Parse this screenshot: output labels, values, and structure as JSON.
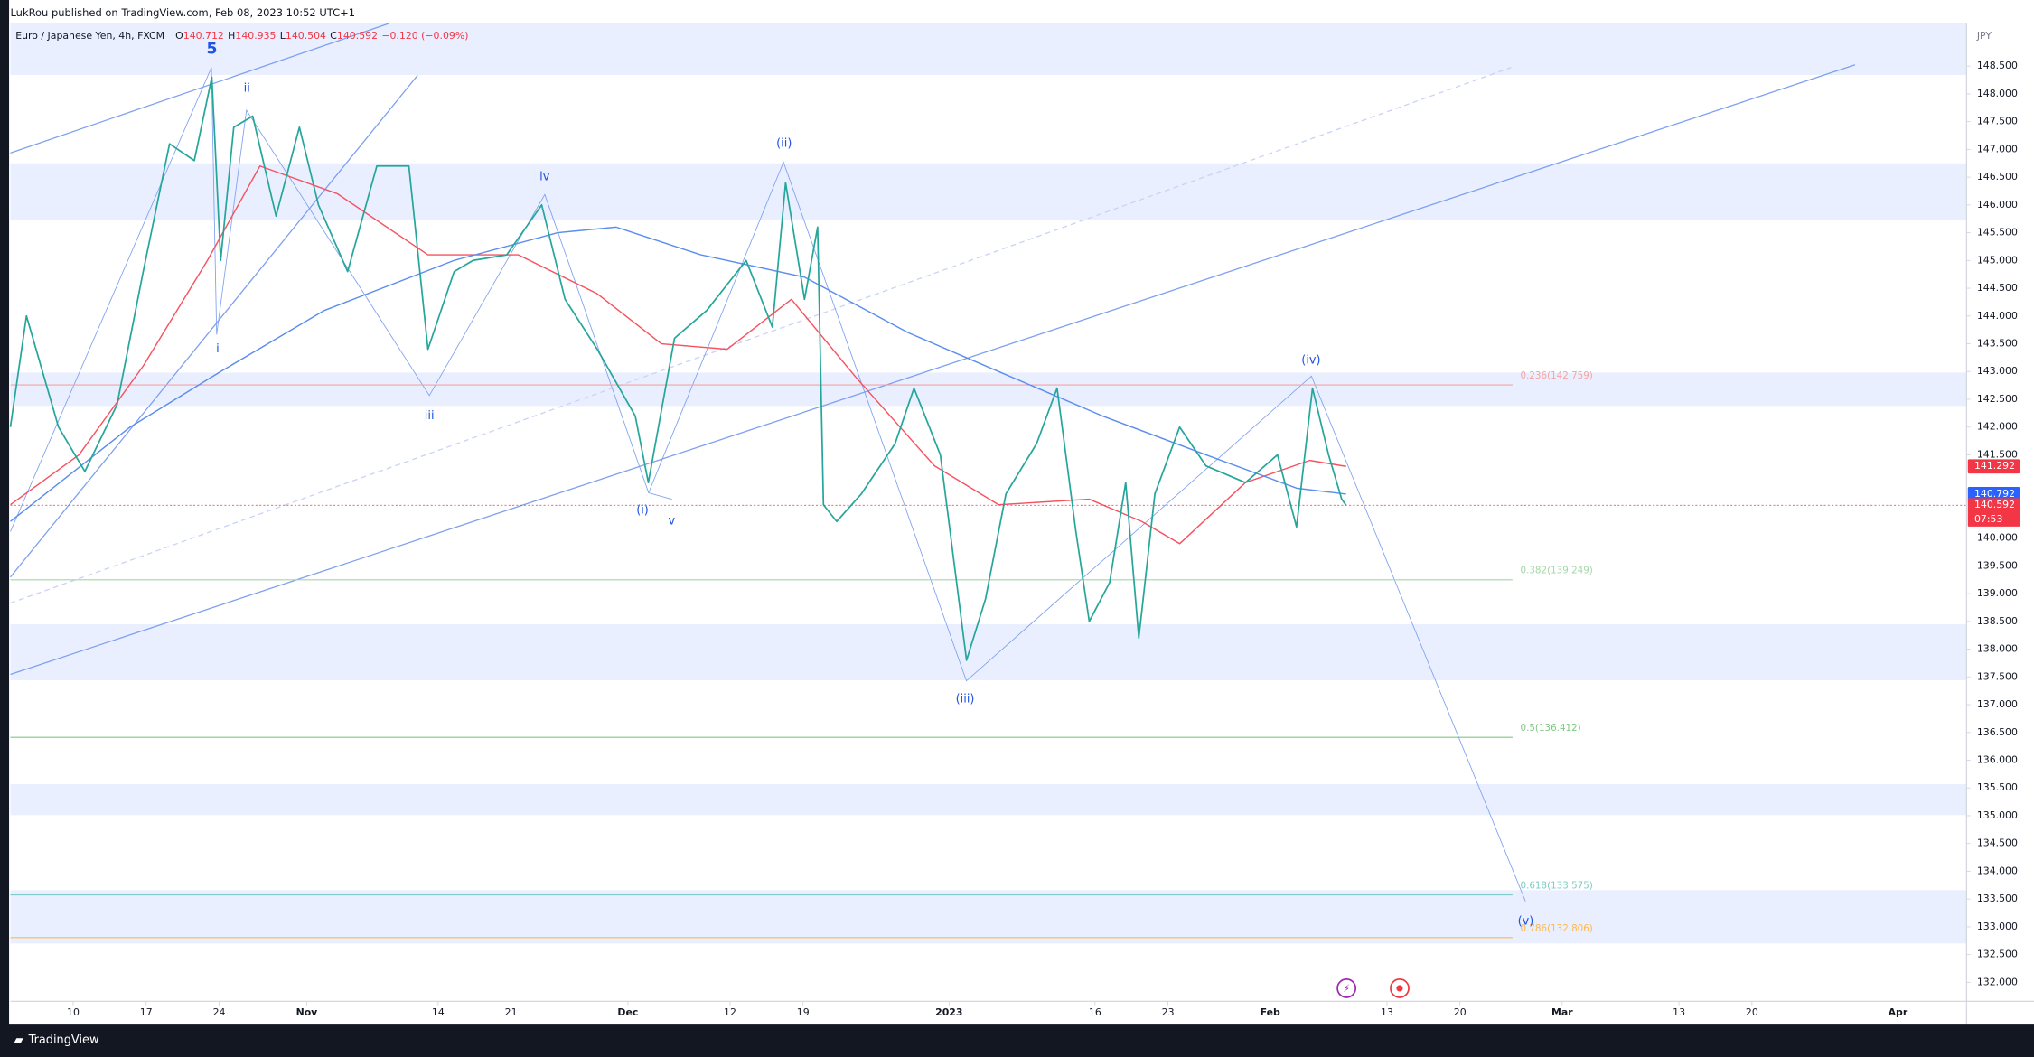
{
  "header": {
    "publisher": "LukRou published on TradingView.com, Feb 08, 2023 10:52 UTC+1",
    "brand": "TradingView"
  },
  "chart_data": {
    "type": "line",
    "title": "Euro / Japanese Yen, 4h, FXCM",
    "ohlc": [
      {
        "label": "O",
        "value": 140.712
      },
      {
        "label": "H",
        "value": 140.935
      },
      {
        "label": "L",
        "value": 140.504
      },
      {
        "label": "C",
        "value": 140.592
      }
    ],
    "change": "−0.120 (−0.09%)",
    "currency": "JPY",
    "xlim": [
      -4.3,
      129.7
    ],
    "ylim": [
      131.66,
      149.27
    ],
    "xticks": [
      {
        "value": 0,
        "label": "10"
      },
      {
        "value": 5,
        "label": "17"
      },
      {
        "value": 10,
        "label": "24"
      },
      {
        "value": 16,
        "label": "Nov"
      },
      {
        "value": 25,
        "label": "14"
      },
      {
        "value": 30,
        "label": "21"
      },
      {
        "value": 38,
        "label": "Dec"
      },
      {
        "value": 45,
        "label": "12"
      },
      {
        "value": 50,
        "label": "19"
      },
      {
        "value": 60,
        "label": "2023"
      },
      {
        "value": 70,
        "label": "16"
      },
      {
        "value": 75,
        "label": "23"
      },
      {
        "value": 82,
        "label": "Feb"
      },
      {
        "value": 90,
        "label": "13"
      },
      {
        "value": 95,
        "label": "20"
      },
      {
        "value": 102,
        "label": "Mar"
      },
      {
        "value": 110,
        "label": "13"
      },
      {
        "value": 115,
        "label": "20"
      },
      {
        "value": 125,
        "label": "Apr"
      }
    ],
    "yticks": [
      {
        "value": 132,
        "label": "132.000"
      },
      {
        "value": 132.5,
        "label": "132.500"
      },
      {
        "value": 133,
        "label": "133.000"
      },
      {
        "value": 133.5,
        "label": "133.500"
      },
      {
        "value": 134,
        "label": "134.000"
      },
      {
        "value": 134.5,
        "label": "134.500"
      },
      {
        "value": 135,
        "label": "135.000"
      },
      {
        "value": 135.5,
        "label": "135.500"
      },
      {
        "value": 136,
        "label": "136.000"
      },
      {
        "value": 136.5,
        "label": "136.500"
      },
      {
        "value": 137,
        "label": "137.000"
      },
      {
        "value": 137.5,
        "label": "137.500"
      },
      {
        "value": 138,
        "label": "138.000"
      },
      {
        "value": 138.5,
        "label": "138.500"
      },
      {
        "value": 139,
        "label": "139.000"
      },
      {
        "value": 139.5,
        "label": "139.500"
      },
      {
        "value": 140,
        "label": "140.000"
      },
      {
        "value": 141.5,
        "label": "141.500"
      },
      {
        "value": 142,
        "label": "142.000"
      },
      {
        "value": 142.5,
        "label": "142.500"
      },
      {
        "value": 143,
        "label": "143.000"
      },
      {
        "value": 143.5,
        "label": "143.500"
      },
      {
        "value": 144,
        "label": "144.000"
      },
      {
        "value": 144.5,
        "label": "144.500"
      },
      {
        "value": 145,
        "label": "145.000"
      },
      {
        "value": 145.5,
        "label": "145.500"
      },
      {
        "value": 146,
        "label": "146.000"
      },
      {
        "value": 146.5,
        "label": "146.500"
      },
      {
        "value": 147,
        "label": "147.000"
      },
      {
        "value": 147.5,
        "label": "147.500"
      },
      {
        "value": 148,
        "label": "148.000"
      },
      {
        "value": 148.5,
        "label": "148.500"
      }
    ],
    "price": {
      "color": "#26a69a",
      "x": [
        -4.3,
        -3.2,
        -1,
        0.8,
        3,
        4.8,
        6.6,
        8.3,
        9.5,
        10.1,
        11,
        12.3,
        13.9,
        15.5,
        16.8,
        18.8,
        20.8,
        23,
        24.3,
        26.1,
        27.4,
        29.7,
        32.1,
        33.7,
        35.9,
        38.5,
        39.4,
        41.2,
        43.4,
        46.1,
        47.9,
        48.8,
        50.1,
        51,
        51.4,
        52.3,
        54,
        56.3,
        57.6,
        59.4,
        61.2,
        62.5,
        63.9,
        66,
        67.4,
        68.7,
        69.6,
        71,
        72.1,
        73,
        74.1,
        75.8,
        77.6,
        80.3,
        82.5,
        83.8,
        84.9,
        86,
        86.9,
        87.2
      ],
      "values": [
        142.0,
        144.0,
        142.0,
        141.2,
        142.4,
        144.8,
        147.1,
        146.8,
        148.3,
        145.0,
        147.4,
        147.6,
        145.8,
        147.4,
        146.0,
        144.8,
        146.7,
        146.7,
        143.4,
        144.8,
        145.0,
        145.1,
        146.0,
        144.3,
        143.4,
        142.2,
        141.0,
        143.6,
        144.1,
        145.0,
        143.8,
        146.4,
        144.3,
        145.6,
        140.6,
        140.3,
        140.8,
        141.7,
        142.7,
        141.5,
        137.8,
        138.9,
        140.8,
        141.7,
        142.7,
        140.1,
        138.5,
        139.2,
        141.0,
        138.2,
        140.8,
        142.0,
        141.3,
        141.0,
        141.5,
        140.2,
        142.7,
        141.5,
        140.7,
        140.592
      ]
    },
    "moving_averages": [
      {
        "color": "#f7525f",
        "x": [
          -4.3,
          0.4,
          4.8,
          9.2,
          12.8,
          18.1,
          24.3,
          30.5,
          35.9,
          40.3,
          44.8,
          49.2,
          53.6,
          59,
          63.4,
          69.6,
          73.2,
          75.8,
          80.3,
          84.7,
          87.2
        ],
        "values": [
          140.6,
          141.5,
          143.1,
          145.0,
          146.7,
          146.2,
          145.1,
          145.1,
          144.4,
          143.5,
          143.4,
          144.3,
          142.9,
          141.3,
          140.6,
          140.7,
          140.3,
          139.9,
          141.0,
          141.4,
          141.292
        ]
      },
      {
        "color": "#5b8def",
        "x": [
          -4.3,
          3.9,
          10.1,
          17.2,
          26.1,
          33.2,
          37.2,
          43,
          50.1,
          57.2,
          63.4,
          70.5,
          77.6,
          83.8,
          87.2
        ],
        "values": [
          140.3,
          142.0,
          143.0,
          144.1,
          145.0,
          145.5,
          145.6,
          145.1,
          144.7,
          143.7,
          143.0,
          142.2,
          141.5,
          140.9,
          140.792
        ]
      }
    ],
    "price_labels": [
      {
        "value": 141.292,
        "color": "#f23645"
      },
      {
        "value": 140.792,
        "color": "#2962ff"
      },
      {
        "value": 140.592,
        "color": "#f23645",
        "countdown": "07:53"
      }
    ],
    "zones": [
      [
        148.34,
        149.27
      ],
      [
        145.72,
        146.75
      ],
      [
        142.38,
        142.98
      ],
      [
        137.44,
        138.45
      ],
      [
        135.01,
        135.57
      ],
      [
        132.7,
        133.66
      ]
    ],
    "fib_levels": [
      {
        "ratio": 0.236,
        "value": 142.759,
        "label": "0.236(142.759)",
        "color": "#f4a3a3"
      },
      {
        "ratio": 0.382,
        "value": 139.249,
        "label": "0.382(139.249)",
        "color": "#a5d6a7"
      },
      {
        "ratio": 0.5,
        "value": 136.412,
        "label": "0.5(136.412)",
        "color": "#81c784"
      },
      {
        "ratio": 0.618,
        "value": 133.575,
        "label": "0.618(133.575)",
        "color": "#80cbc4"
      },
      {
        "ratio": 0.786,
        "value": 132.806,
        "label": "0.786(132.806)",
        "color": "#ffb74d"
      }
    ],
    "waves": [
      {
        "label": "5",
        "x": 9.5,
        "y": 148.8
      },
      {
        "label": "ii",
        "x": 11.9,
        "y": 148.1
      },
      {
        "label": "i",
        "x": 9.9,
        "y": 143.4
      },
      {
        "label": "iii",
        "x": 24.4,
        "y": 142.2
      },
      {
        "label": "iv",
        "x": 32.3,
        "y": 146.5
      },
      {
        "label": "(i)",
        "x": 39,
        "y": 140.5
      },
      {
        "label": "v",
        "x": 41,
        "y": 140.3
      },
      {
        "label": "(ii)",
        "x": 48.7,
        "y": 147.1
      },
      {
        "label": "(iii)",
        "x": 61.1,
        "y": 137.1
      },
      {
        "label": "(iv)",
        "x": 84.8,
        "y": 143.2
      },
      {
        "label": "(v)",
        "x": 99.5,
        "y": 133.1
      }
    ]
  }
}
